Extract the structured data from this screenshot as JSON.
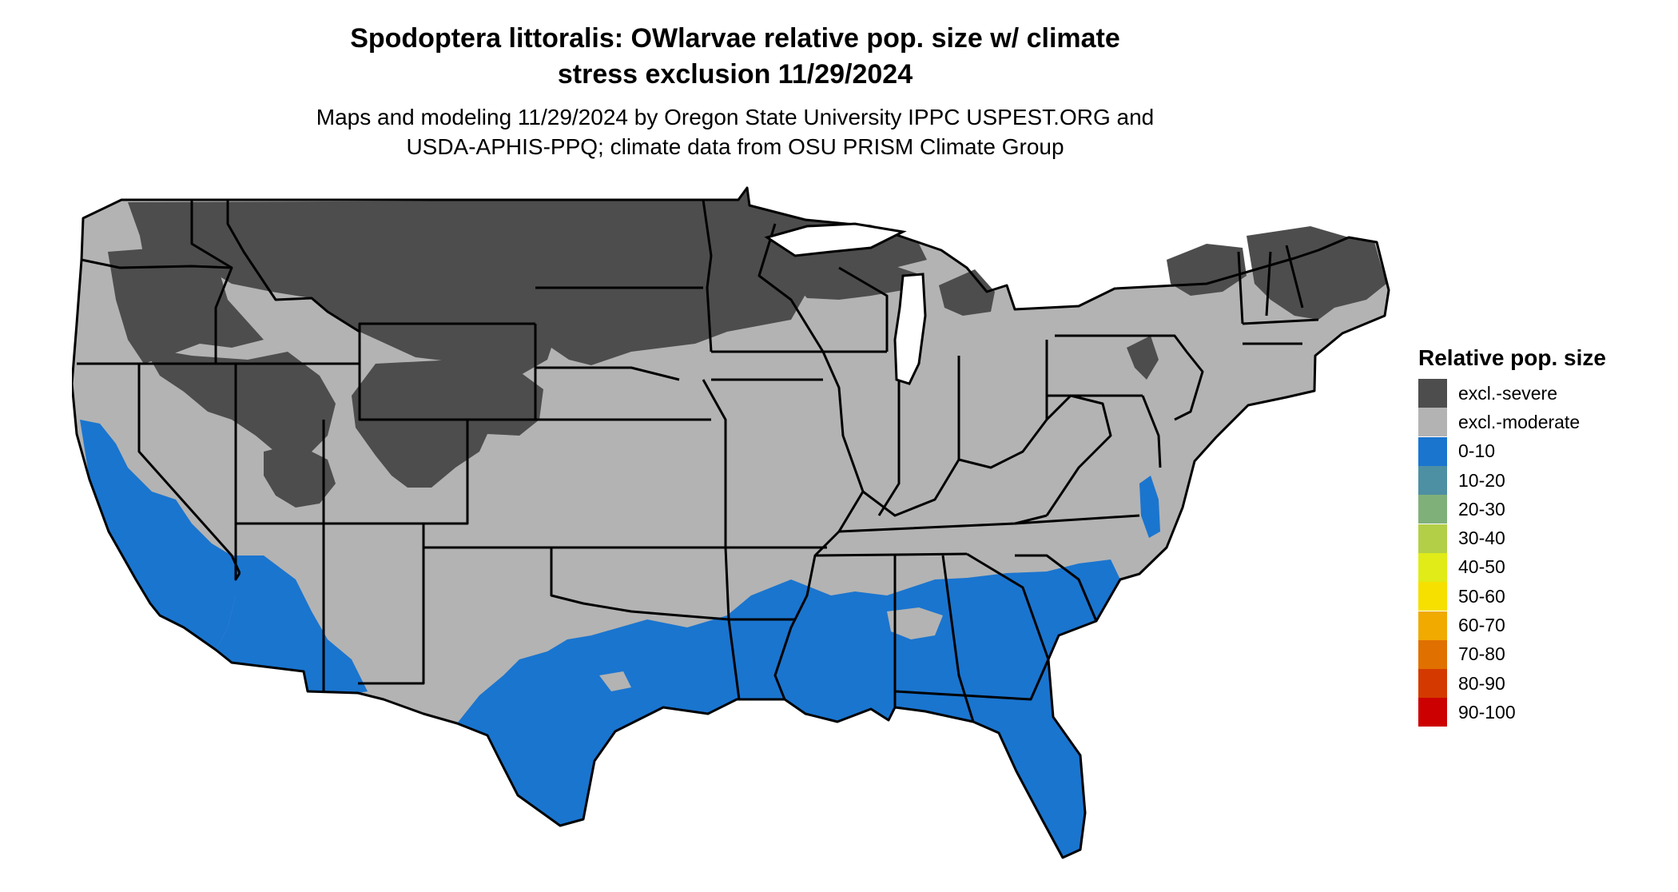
{
  "title_line1": "Spodoptera littoralis: OWlarvae relative pop. size w/ climate",
  "title_line2": "stress exclusion 11/29/2024",
  "subtitle_line1": "Maps and modeling 11/29/2024 by Oregon State University IPPC USPEST.ORG and",
  "subtitle_line2": "USDA-APHIS-PPQ; climate data from OSU PRISM Climate Group",
  "legend": {
    "title": "Relative pop. size",
    "items": [
      {
        "label": "excl.-severe",
        "color": "#4d4d4d"
      },
      {
        "label": "excl.-moderate",
        "color": "#b3b3b3"
      },
      {
        "label": "0-10",
        "color": "#1a75cf"
      },
      {
        "label": "10-20",
        "color": "#4d8fa3"
      },
      {
        "label": "20-30",
        "color": "#80b07a"
      },
      {
        "label": "30-40",
        "color": "#b3cf47"
      },
      {
        "label": "40-50",
        "color": "#e0eb17"
      },
      {
        "label": "50-60",
        "color": "#f5e000"
      },
      {
        "label": "60-70",
        "color": "#f0aa00"
      },
      {
        "label": "70-80",
        "color": "#e07000"
      },
      {
        "label": "80-90",
        "color": "#d43a00"
      },
      {
        "label": "90-100",
        "color": "#cc0000"
      }
    ]
  },
  "map_colors": {
    "severe": "#4d4d4d",
    "moderate": "#b3b3b3",
    "low": "#1a75cf",
    "border": "#000000"
  }
}
